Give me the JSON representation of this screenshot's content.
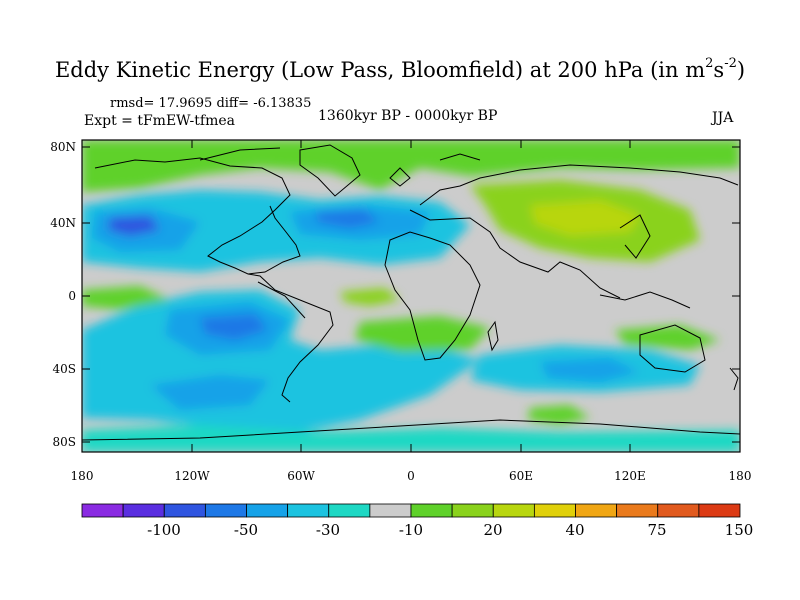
{
  "header": {
    "title_main": "Eddy Kinetic Energy (Low Pass, Bloomfield) at 200 hPa (in m",
    "title_sup1": "2",
    "title_mid": "s",
    "title_sup2": "-2",
    "title_end": ")",
    "stats": "rmsd= 17.9695 diff= -6.13835",
    "experiment": "Expt = tFmEW-tfmea",
    "period": "1360kyr BP - 0000kyr BP",
    "season": "JJA"
  },
  "map": {
    "lat_labels": [
      "80N",
      "40N",
      "0",
      "40S",
      "80S"
    ],
    "lon_labels": [
      "180",
      "120W",
      "60W",
      "0",
      "60E",
      "120E",
      "180"
    ]
  },
  "colorbar": {
    "labels": [
      "-100",
      "-50",
      "-30",
      "-10",
      "20",
      "40",
      "75",
      "150"
    ],
    "colors": [
      "#8a2be2",
      "#5a2ee0",
      "#2f55e0",
      "#1e78e6",
      "#16a2e8",
      "#1cc3e0",
      "#1ed8c4",
      "#cccccc",
      "#5fd12a",
      "#8ad21c",
      "#b8d60f",
      "#e0d00a",
      "#f0a614",
      "#ea7a1c",
      "#e15a1e",
      "#dc3a14"
    ]
  }
}
